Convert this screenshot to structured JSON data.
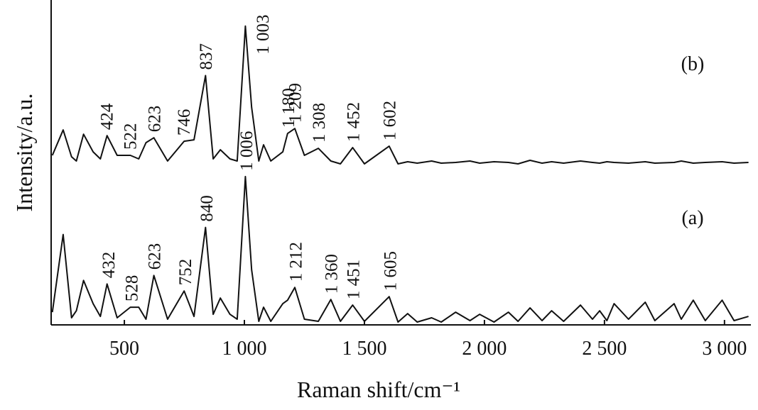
{
  "chart_data": {
    "type": "line",
    "x_label": "Raman shift/cm⁻¹",
    "y_label": "Intensity/a.u.",
    "xlim": [
      195,
      3110
    ],
    "ylim": [
      0,
      460
    ],
    "xticks": [
      500,
      {
        "value": 1000,
        "label": "1 000"
      },
      {
        "value": 1500,
        "label": "1 500"
      },
      {
        "value": 2000,
        "label": "2 000"
      },
      {
        "value": 2500,
        "label": "2 500"
      },
      {
        "value": 3000,
        "label": "3 000"
      }
    ],
    "grid": false,
    "x": [
      200,
      245,
      280,
      300,
      330,
      370,
      400,
      428,
      470,
      525,
      560,
      590,
      623,
      680,
      749,
      790,
      838,
      870,
      900,
      940,
      970,
      1004,
      1030,
      1060,
      1080,
      1110,
      1160,
      1180,
      1210,
      1250,
      1308,
      1360,
      1400,
      1451,
      1500,
      1603,
      1640,
      1680,
      1720,
      1780,
      1820,
      1880,
      1940,
      1980,
      2040,
      2100,
      2140,
      2190,
      2240,
      2280,
      2330,
      2400,
      2450,
      2480,
      2510,
      2540,
      2600,
      2670,
      2710,
      2790,
      2820,
      2870,
      2920,
      2990,
      3040,
      3100
    ],
    "series": [
      {
        "name": "(a)",
        "color": "#111111",
        "values": [
          18,
          128,
          10,
          20,
          63,
          30,
          12,
          58,
          10,
          25,
          25,
          8,
          70,
          8,
          48,
          12,
          138,
          15,
          38,
          15,
          8,
          210,
          78,
          5,
          25,
          5,
          30,
          35,
          53,
          8,
          5,
          36,
          5,
          28,
          5,
          40,
          4,
          16,
          4,
          10,
          4,
          18,
          6,
          15,
          4,
          18,
          5,
          24,
          6,
          20,
          5,
          28,
          8,
          20,
          6,
          30,
          8,
          32,
          6,
          30,
          8,
          35,
          6,
          35,
          6,
          12
        ]
      },
      {
        "name": "(b)",
        "color": "#111111",
        "values": [
          240,
          276,
          238,
          232,
          270,
          245,
          235,
          268,
          240,
          240,
          235,
          258,
          265,
          232,
          260,
          262,
          353,
          235,
          248,
          235,
          232,
          423,
          308,
          232,
          255,
          232,
          245,
          271,
          278,
          240,
          250,
          232,
          228,
          251,
          228,
          253,
          228,
          231,
          229,
          232,
          229,
          230,
          232,
          229,
          231,
          230,
          228,
          233,
          229,
          231,
          229,
          232,
          230,
          229,
          231,
          230,
          229,
          231,
          229,
          230,
          232,
          229,
          230,
          231,
          229,
          230
        ]
      }
    ],
    "annotations": [
      {
        "series": 0,
        "x": 432,
        "label": "432"
      },
      {
        "series": 0,
        "x": 528,
        "label": "528"
      },
      {
        "series": 0,
        "x": 623,
        "label": "623"
      },
      {
        "series": 0,
        "x": 752,
        "label": "752"
      },
      {
        "series": 0,
        "x": 840,
        "label": "840"
      },
      {
        "series": 0,
        "x": 1006,
        "label": "1 006"
      },
      {
        "series": 0,
        "x": 1212,
        "label": "1 212"
      },
      {
        "series": 0,
        "x": 1360,
        "label": "1 360"
      },
      {
        "series": 0,
        "x": 1451,
        "label": "1 451"
      },
      {
        "series": 0,
        "x": 1605,
        "label": "1 605"
      },
      {
        "series": 1,
        "x": 424,
        "label": "424"
      },
      {
        "series": 1,
        "x": 522,
        "label": "522"
      },
      {
        "series": 1,
        "x": 623,
        "label": "623"
      },
      {
        "series": 1,
        "x": 746,
        "label": "746"
      },
      {
        "series": 1,
        "x": 837,
        "label": "837"
      },
      {
        "series": 1,
        "x": 1003,
        "label": "1 003"
      },
      {
        "series": 1,
        "x": 1180,
        "label": "1 180"
      },
      {
        "series": 1,
        "x": 1209,
        "label": "1 209"
      },
      {
        "series": 1,
        "x": 1308,
        "label": "1 308"
      },
      {
        "series": 1,
        "x": 1452,
        "label": "1 452"
      },
      {
        "series": 1,
        "x": 1602,
        "label": "1 602"
      }
    ]
  }
}
